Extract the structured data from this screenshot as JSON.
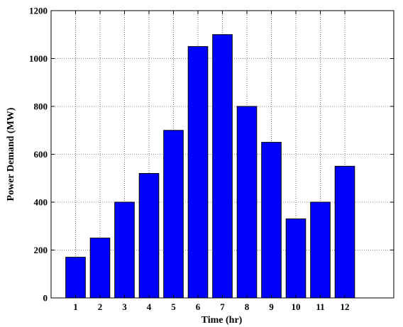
{
  "chart_data": {
    "type": "bar",
    "title": "",
    "xlabel": "Time (hr)",
    "ylabel": "Power Demand (MW)",
    "categories": [
      "1",
      "2",
      "3",
      "4",
      "5",
      "6",
      "7",
      "8",
      "9",
      "10",
      "11",
      "12"
    ],
    "values": [
      170,
      250,
      400,
      520,
      700,
      1050,
      1100,
      800,
      650,
      330,
      400,
      550
    ],
    "xlim": [
      0,
      14
    ],
    "ylim": [
      0,
      1200
    ],
    "yticks": [
      0,
      200,
      400,
      600,
      800,
      1000,
      1200
    ],
    "grid": true,
    "colors": {
      "bar": "#0000ff",
      "edge": "#000000"
    }
  }
}
